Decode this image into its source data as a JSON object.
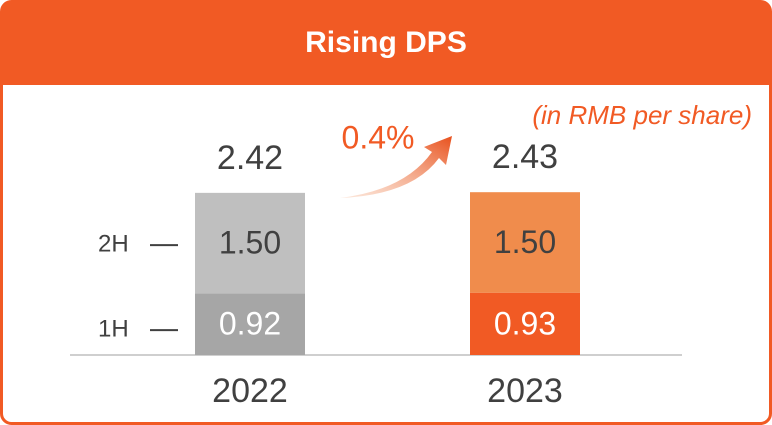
{
  "chart_data": {
    "type": "stacked_bar",
    "title": "Rising DPS",
    "subtitle": "(in RMB per share)",
    "categories": [
      "2022",
      "2023"
    ],
    "series": [
      {
        "name": "1H",
        "colors": [
          "#a6a6a6",
          "#f15a24"
        ],
        "values": [
          0.92,
          0.93
        ]
      },
      {
        "name": "2H",
        "colors": [
          "#bfbfbf",
          "#f08c4c"
        ],
        "values": [
          1.5,
          1.5
        ],
        "value_labels": [
          "1.50",
          "1.50"
        ]
      }
    ],
    "totals": [
      2.42,
      2.43
    ],
    "annotation": "0.4%"
  }
}
